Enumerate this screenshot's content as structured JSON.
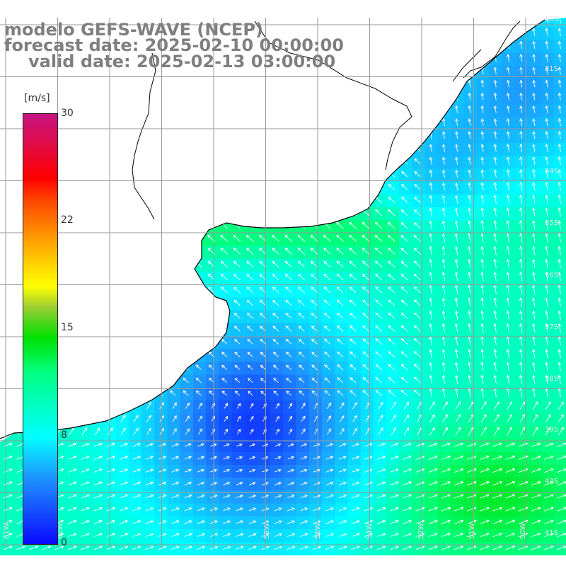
{
  "title": {
    "line1": "modelo GEFS-WAVE (NCEP)",
    "line2": "forecast date: 2025-02-10 00:00:00",
    "line3": "valid date: 2025-02-13 03:00:00"
  },
  "colorbar": {
    "unit": "[m/s]",
    "ticks": [
      "30",
      "22",
      "15",
      "8",
      "0"
    ],
    "min": 0,
    "max": 30,
    "colors": {
      "low": "#0a0aff",
      "mid": "#00ffff",
      "green": "#00e000",
      "yellow": "#ffff00",
      "high": "#ff0000",
      "top": "#c71585"
    }
  },
  "map": {
    "lat_labels": [
      "30S",
      "31S",
      "34S",
      "35S",
      "36S",
      "37S",
      "38S",
      "39S",
      "40S",
      "41S"
    ],
    "lon_labels": [
      "61W",
      "60W",
      "58W",
      "56W",
      "54W",
      "52W",
      "51W",
      "50W"
    ],
    "land_color": "#ffffff",
    "grid_color": "#9a9a9a",
    "coast_color": "#000000"
  }
}
